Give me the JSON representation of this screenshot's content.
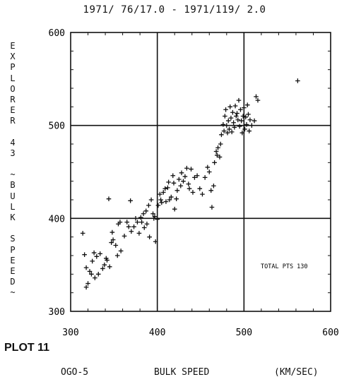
{
  "header": "1971/ 76/17.0 - 1971/119/ 2.0",
  "y_label": "EXPLORER 43 ~BULK SPEED~",
  "plot_label": "PLOT 11",
  "footer": {
    "left": "OGO-5",
    "center": "BULK SPEED",
    "right": "(KM/SEC)"
  },
  "annotation": "TOTAL PTS  130",
  "chart_data": {
    "type": "scatter",
    "xlabel": "OGO-5 BULK SPEED (KM/SEC)",
    "ylabel": "EXPLORER 43 ~BULK SPEED~",
    "xlim": [
      300,
      600
    ],
    "ylim": [
      300,
      600
    ],
    "xticks": [
      300,
      400,
      500,
      600
    ],
    "yticks": [
      300,
      400,
      500,
      600
    ],
    "grid": true,
    "points": [
      [
        314,
        384
      ],
      [
        316,
        361
      ],
      [
        318,
        347
      ],
      [
        318,
        326
      ],
      [
        320,
        330
      ],
      [
        322,
        343
      ],
      [
        324,
        340
      ],
      [
        325,
        354
      ],
      [
        327,
        363
      ],
      [
        328,
        336
      ],
      [
        330,
        359
      ],
      [
        332,
        340
      ],
      [
        334,
        362
      ],
      [
        337,
        346
      ],
      [
        339,
        350
      ],
      [
        341,
        357
      ],
      [
        342,
        355
      ],
      [
        344,
        421
      ],
      [
        345,
        348
      ],
      [
        347,
        374
      ],
      [
        348,
        385
      ],
      [
        349,
        377
      ],
      [
        352,
        371
      ],
      [
        354,
        360
      ],
      [
        355,
        394
      ],
      [
        357,
        396
      ],
      [
        358,
        365
      ],
      [
        362,
        381
      ],
      [
        365,
        396
      ],
      [
        367,
        391
      ],
      [
        369,
        419
      ],
      [
        370,
        386
      ],
      [
        373,
        391
      ],
      [
        375,
        400
      ],
      [
        377,
        396
      ],
      [
        379,
        384
      ],
      [
        381,
        401
      ],
      [
        382,
        396
      ],
      [
        384,
        405
      ],
      [
        385,
        390
      ],
      [
        387,
        408
      ],
      [
        388,
        394
      ],
      [
        390,
        414
      ],
      [
        391,
        380
      ],
      [
        393,
        420
      ],
      [
        395,
        405
      ],
      [
        396,
        400
      ],
      [
        397,
        402
      ],
      [
        398,
        375
      ],
      [
        400,
        399
      ],
      [
        401,
        414
      ],
      [
        403,
        426
      ],
      [
        404,
        420
      ],
      [
        405,
        417
      ],
      [
        407,
        428
      ],
      [
        409,
        432
      ],
      [
        410,
        418
      ],
      [
        412,
        433
      ],
      [
        413,
        439
      ],
      [
        414,
        420
      ],
      [
        416,
        423
      ],
      [
        418,
        446
      ],
      [
        419,
        438
      ],
      [
        420,
        410
      ],
      [
        422,
        421
      ],
      [
        423,
        430
      ],
      [
        425,
        442
      ],
      [
        427,
        435
      ],
      [
        428,
        449
      ],
      [
        430,
        440
      ],
      [
        432,
        445
      ],
      [
        434,
        454
      ],
      [
        436,
        437
      ],
      [
        437,
        432
      ],
      [
        439,
        453
      ],
      [
        441,
        428
      ],
      [
        443,
        444
      ],
      [
        446,
        446
      ],
      [
        449,
        432
      ],
      [
        452,
        426
      ],
      [
        455,
        444
      ],
      [
        458,
        455
      ],
      [
        460,
        450
      ],
      [
        462,
        430
      ],
      [
        463,
        412
      ],
      [
        465,
        435
      ],
      [
        466,
        460
      ],
      [
        468,
        472
      ],
      [
        469,
        468
      ],
      [
        470,
        476
      ],
      [
        472,
        466
      ],
      [
        473,
        480
      ],
      [
        474,
        490
      ],
      [
        476,
        501
      ],
      [
        477,
        494
      ],
      [
        478,
        510
      ],
      [
        479,
        517
      ],
      [
        480,
        500
      ],
      [
        481,
        492
      ],
      [
        482,
        505
      ],
      [
        483,
        496
      ],
      [
        484,
        520
      ],
      [
        485,
        508
      ],
      [
        486,
        493
      ],
      [
        487,
        514
      ],
      [
        488,
        503
      ],
      [
        489,
        498
      ],
      [
        490,
        521
      ],
      [
        491,
        510
      ],
      [
        492,
        513
      ],
      [
        493,
        506
      ],
      [
        494,
        527
      ],
      [
        495,
        499
      ],
      [
        496,
        517
      ],
      [
        497,
        505
      ],
      [
        498,
        492
      ],
      [
        499,
        510
      ],
      [
        500,
        519
      ],
      [
        501,
        496
      ],
      [
        502,
        509
      ],
      [
        503,
        501
      ],
      [
        504,
        522
      ],
      [
        505,
        512
      ],
      [
        506,
        494
      ],
      [
        507,
        506
      ],
      [
        509,
        500
      ],
      [
        512,
        505
      ],
      [
        514,
        531
      ],
      [
        516,
        527
      ],
      [
        562,
        548
      ]
    ]
  }
}
